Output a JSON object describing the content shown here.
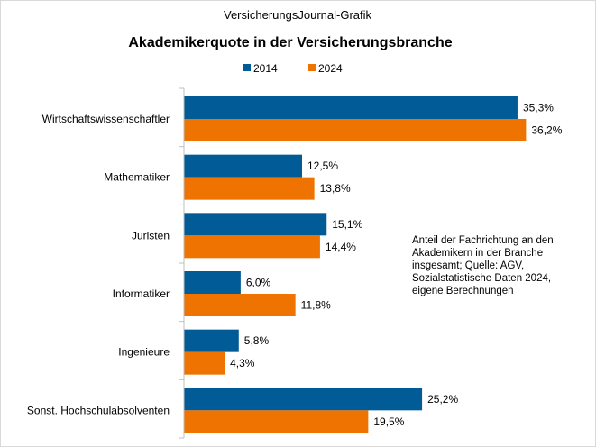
{
  "chart_data": {
    "type": "bar",
    "orientation": "horizontal",
    "source_label": "VersicherungsJournal-Grafik",
    "title": "Akademikerquote  in der Versicherungsbranche",
    "categories": [
      "Wirtschaftswissenschaftler",
      "Mathematiker",
      "Juristen",
      "Informatiker",
      "Ingenieure",
      "Sonst. Hochschulabsolventen"
    ],
    "series": [
      {
        "name": "2014",
        "color": "#005b96",
        "values": [
          35.3,
          12.5,
          15.1,
          6.0,
          5.8,
          25.2
        ],
        "labels": [
          "35,3%",
          "12,5%",
          "15,1%",
          "6,0%",
          "5,8%",
          "25,2%"
        ]
      },
      {
        "name": "2024",
        "color": "#ef7300",
        "values": [
          36.2,
          13.8,
          14.4,
          11.8,
          4.3,
          19.5
        ],
        "labels": [
          "36,2%",
          "13,8%",
          "14,4%",
          "11,8%",
          "4,3%",
          "19,5%"
        ]
      }
    ],
    "xlim": [
      0,
      40
    ],
    "xlabel": "",
    "ylabel": "",
    "grid": false,
    "legend_position": "top-center",
    "note_lines": [
      "Anteil der Fachrichtung an den",
      "Akademikern in der Branche",
      "insgesamt; Quelle: AGV,",
      "Sozialstatistische Daten 2024,",
      "eigene Berechnungen"
    ]
  }
}
